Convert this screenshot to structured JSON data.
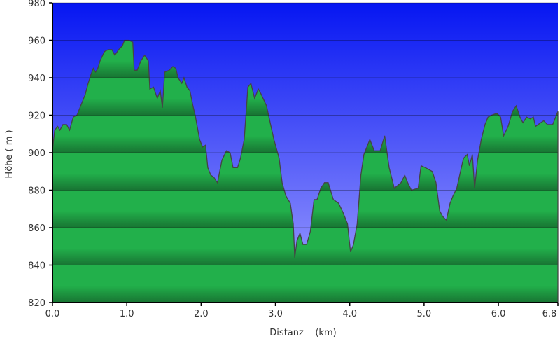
{
  "chart_data": {
    "type": "area",
    "title": "",
    "xlabel": "Distanz    (km)",
    "ylabel": "Höhe ( m )",
    "xlim": [
      0,
      6.8
    ],
    "ylim": [
      820,
      980
    ],
    "x_ticks": [
      "0.0",
      "1.0",
      "2.0",
      "3.0",
      "4.0",
      "5.0",
      "6.0",
      "6.8"
    ],
    "x_tick_values": [
      0,
      1,
      2,
      3,
      4,
      5,
      6,
      6.8
    ],
    "y_ticks": [
      "820",
      "840",
      "860",
      "880",
      "900",
      "920",
      "940",
      "960",
      "980"
    ],
    "y_tick_values": [
      820,
      840,
      860,
      880,
      900,
      920,
      940,
      960,
      980
    ],
    "grid": true,
    "colors": {
      "sky_top": "#0616f2",
      "sky_bottom": "#a4a4ff",
      "fill_light": "#22b04b",
      "fill_dark": "#187433",
      "line": "#444444"
    },
    "x": [
      0,
      0.03,
      0.07,
      0.1,
      0.14,
      0.19,
      0.23,
      0.28,
      0.33,
      0.38,
      0.44,
      0.48,
      0.52,
      0.55,
      0.58,
      0.61,
      0.64,
      0.7,
      0.75,
      0.8,
      0.84,
      0.89,
      0.94,
      0.97,
      1.03,
      1.08,
      1.1,
      1.14,
      1.19,
      1.24,
      1.29,
      1.31,
      1.36,
      1.41,
      1.45,
      1.48,
      1.51,
      1.57,
      1.62,
      1.66,
      1.69,
      1.74,
      1.77,
      1.81,
      1.85,
      1.89,
      1.92,
      1.98,
      2.02,
      2.06,
      2.09,
      2.13,
      2.17,
      2.22,
      2.28,
      2.34,
      2.39,
      2.43,
      2.49,
      2.53,
      2.58,
      2.63,
      2.67,
      2.72,
      2.77,
      2.81,
      2.88,
      2.94,
      2.98,
      3.05,
      3.09,
      3.14,
      3.2,
      3.24,
      3.26,
      3.29,
      3.33,
      3.37,
      3.42,
      3.47,
      3.52,
      3.56,
      3.61,
      3.66,
      3.71,
      3.78,
      3.85,
      3.91,
      3.97,
      4.01,
      4.05,
      4.1,
      4.15,
      4.19,
      4.27,
      4.33,
      4.41,
      4.47,
      4.53,
      4.6,
      4.69,
      4.74,
      4.78,
      4.83,
      4.92,
      4.96,
      5.02,
      5.11,
      5.16,
      5.21,
      5.25,
      5.3,
      5.35,
      5.39,
      5.44,
      5.49,
      5.53,
      5.58,
      5.61,
      5.65,
      5.68,
      5.72,
      5.77,
      5.82,
      5.86,
      5.91,
      5.98,
      6.03,
      6.07,
      6.13,
      6.19,
      6.24,
      6.29,
      6.33,
      6.38,
      6.43,
      6.47,
      6.5,
      6.57,
      6.61,
      6.66,
      6.73,
      6.8
    ],
    "y": [
      901,
      912,
      914,
      912,
      915,
      915,
      912,
      919,
      920,
      925,
      931,
      937,
      942,
      945,
      943,
      945,
      949,
      954,
      955,
      955,
      952,
      955,
      957,
      960,
      960,
      959,
      944,
      944,
      949,
      952,
      949,
      934,
      935,
      929,
      933,
      924,
      943,
      944,
      946,
      945,
      940,
      937,
      940,
      935,
      933,
      925,
      920,
      907,
      903,
      904,
      892,
      888,
      887,
      884,
      896,
      901,
      900,
      892,
      892,
      897,
      907,
      935,
      937,
      929,
      934,
      931,
      925,
      914,
      907,
      897,
      884,
      877,
      873,
      862,
      844,
      853,
      857,
      851,
      851,
      858,
      875,
      875,
      881,
      884,
      884,
      875,
      873,
      868,
      862,
      847,
      851,
      862,
      888,
      899,
      907,
      901,
      901,
      909,
      892,
      881,
      884,
      888,
      884,
      880,
      881,
      893,
      892,
      890,
      884,
      869,
      866,
      864,
      873,
      877,
      881,
      890,
      897,
      899,
      893,
      899,
      881,
      896,
      907,
      915,
      919,
      920,
      921,
      919,
      909,
      914,
      922,
      925,
      919,
      916,
      919,
      918,
      919,
      914,
      916,
      917,
      915,
      915,
      922
    ]
  }
}
